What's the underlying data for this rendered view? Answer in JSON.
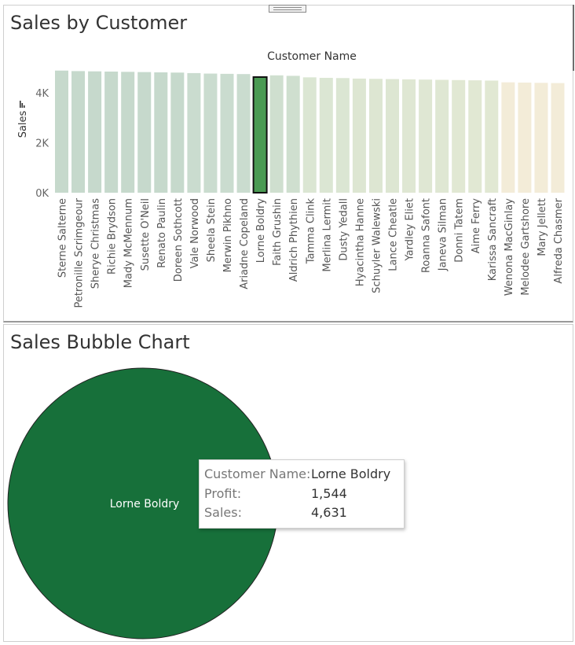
{
  "top_panel": {
    "title": "Sales by Customer"
  },
  "bottom_panel": {
    "title": "Sales Bubble Chart"
  },
  "chart_data": [
    {
      "type": "bar",
      "title": "Sales by Customer",
      "xlabel": "Customer Name",
      "ylabel": "Sales",
      "ylim": [
        0,
        5000
      ],
      "yticks": [
        "0K",
        "2K",
        "4K"
      ],
      "selected": "Lorne Boldry",
      "categories": [
        "Sterne Salterne",
        "Petronille Scrimgeour",
        "Sherye Christmas",
        "Richie Brydson",
        "Mady McMennum",
        "Susette O'Neil",
        "Renato Paulin",
        "Doreen Sothcott",
        "Vale Norwood",
        "Sheela Stein",
        "Merwin Pikhno",
        "Ariadne Copeland",
        "Lorne Boldry",
        "Faith Grushin",
        "Aldrich Phythien",
        "Tamma Clink",
        "Merlina Lermit",
        "Dusty Yedall",
        "Hyacintha Hanne",
        "Schuyler Walewski",
        "Lance Cheatle",
        "Yardley Eliet",
        "Roanna Safont",
        "Janeva Silman",
        "Donni Tatem",
        "Aime Ferry",
        "Karissa Sancraft",
        "Wenona MacGinlay",
        "Melodee Gartshore",
        "Mary Jellett",
        "Alfreda Chasmer"
      ],
      "values": [
        4890,
        4870,
        4860,
        4850,
        4840,
        4830,
        4820,
        4810,
        4790,
        4770,
        4760,
        4750,
        4631,
        4700,
        4680,
        4620,
        4600,
        4590,
        4570,
        4560,
        4550,
        4540,
        4530,
        4520,
        4510,
        4500,
        4490,
        4420,
        4410,
        4400,
        4390
      ],
      "colors": [
        "#c6d9cc",
        "#c6d9cc",
        "#c6d9cc",
        "#c6d9cc",
        "#c6d9cc",
        "#c6d9cc",
        "#c6d9cc",
        "#c6d9cc",
        "#cadccf",
        "#cadccf",
        "#cadccf",
        "#cadccf",
        "#4a9a53",
        "#cfdfcf",
        "#cfdfcf",
        "#dbe6d3",
        "#dbe6d3",
        "#dbe6d3",
        "#dde6d2",
        "#dde6d2",
        "#dde6d2",
        "#dfe7d3",
        "#dfe7d3",
        "#dfe7d3",
        "#e1e8d3",
        "#e1e8d3",
        "#e1e8d3",
        "#f3ecd8",
        "#f3ecd8",
        "#f3ecd8",
        "#f3ecd8"
      ]
    },
    {
      "type": "scatter",
      "title": "Sales Bubble Chart",
      "points": [
        {
          "label": "Lorne Boldry",
          "profit": 1544,
          "sales": 4631
        }
      ],
      "bubble_color": "#17703a"
    }
  ],
  "tooltip": {
    "rows": [
      {
        "label": "Customer Name:",
        "value": "Lorne Boldry"
      },
      {
        "label": "Profit:",
        "value": "1,544"
      },
      {
        "label": "Sales:",
        "value": "4,631"
      }
    ]
  }
}
